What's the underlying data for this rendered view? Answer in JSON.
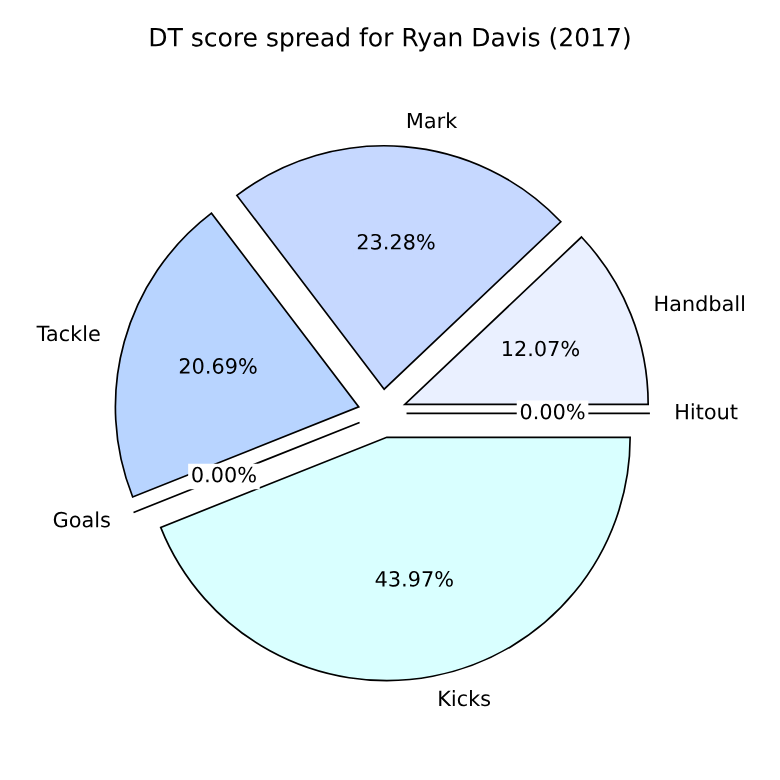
{
  "chart_data": {
    "type": "pie",
    "title": "DT score spread for Ryan Davis (2017)",
    "categories": [
      "Hitout",
      "Handball",
      "Mark",
      "Tackle",
      "Goals",
      "Kicks"
    ],
    "values": [
      0,
      12.07,
      23.28,
      20.69,
      0,
      43.97
    ],
    "value_labels": [
      "0.00%",
      "12.07%",
      "23.28%",
      "20.69%",
      "0.00%",
      "43.97%"
    ],
    "colors": [
      "#ffffff",
      "#eaf0ff",
      "#c6d8ff",
      "#b8d4ff",
      "#ffffff",
      "#d9ffff"
    ]
  }
}
